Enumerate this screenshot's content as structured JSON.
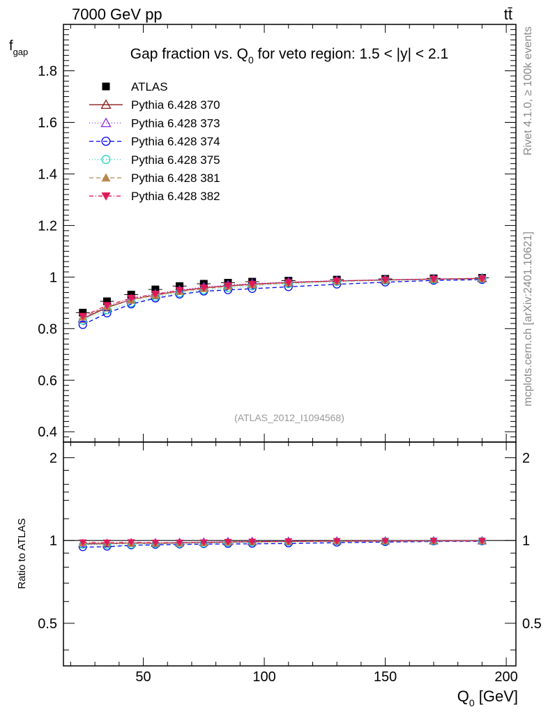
{
  "header": {
    "energy_label": "7000 GeV pp",
    "process_label": "tt̄"
  },
  "side_labels": {
    "rivet": "Rivet 4.1.0, ≥ 100k events",
    "mcplots": "mcplots.cern.ch [arXiv:2401.10621]"
  },
  "watermark": "(ATLAS_2012_I1094568)",
  "colors": {
    "atlas": "#000000",
    "p370": "#8b1a1a",
    "p373": "#8a2be2",
    "p374": "#0000ee",
    "p375": "#20d0c0",
    "p381": "#b8864e",
    "p382": "#e01a5a"
  },
  "chart_data": {
    "type": "scatter",
    "title_main": "Gap fraction vs. Q",
    "title_sub": "0",
    "title_rest": " for veto region: 1.5 < |y| < 2.1",
    "ylabel_main": "f",
    "ylabel_sub": "gap",
    "xlabel_main": "Q",
    "xlabel_sub": "0",
    "xlabel_rest": " [GeV]",
    "ratio_ylabel": "Ratio to ATLAS",
    "xlim": [
      17,
      204
    ],
    "ylim": [
      0.36,
      1.98
    ],
    "ratio_ylim": [
      0.35,
      2.28
    ],
    "xticks": [
      50,
      100,
      150,
      200
    ],
    "xtick_labels": [
      "50",
      "100",
      "150",
      "200"
    ],
    "yticks": [
      0.4,
      0.6,
      0.8,
      1.0,
      1.2,
      1.4,
      1.6,
      1.8
    ],
    "ytick_labels": [
      "0.4",
      "0.6",
      "0.8",
      "1",
      "1.2",
      "1.4",
      "1.6",
      "1.8"
    ],
    "ratio_yticks": [
      0.5,
      1,
      2
    ],
    "ratio_ytick_labels": [
      "0.5",
      "1",
      "2"
    ],
    "x": [
      25,
      35,
      45,
      55,
      65,
      75,
      85,
      95,
      110,
      130,
      150,
      170,
      190
    ],
    "series": [
      {
        "name": "ATLAS",
        "key": "atlas",
        "marker": "square",
        "dash": "",
        "line": false,
        "values": [
          0.862,
          0.906,
          0.932,
          0.952,
          0.965,
          0.974,
          0.978,
          0.982,
          0.986,
          0.99,
          0.993,
          0.995,
          0.997
        ]
      },
      {
        "name": "Pythia 6.428 370",
        "key": "p370",
        "marker": "triangle-open",
        "dash": "",
        "line": true,
        "values": [
          0.838,
          0.882,
          0.912,
          0.93,
          0.946,
          0.958,
          0.966,
          0.972,
          0.979,
          0.985,
          0.989,
          0.992,
          0.995
        ]
      },
      {
        "name": "Pythia 6.428 373",
        "key": "p373",
        "marker": "triangle-open",
        "dash": "1,3",
        "line": true,
        "values": [
          0.84,
          0.885,
          0.915,
          0.935,
          0.95,
          0.962,
          0.97,
          0.975,
          0.981,
          0.986,
          0.99,
          0.993,
          0.995
        ]
      },
      {
        "name": "Pythia 6.428 374",
        "key": "p374",
        "marker": "circle-open",
        "dash": "6,4",
        "line": true,
        "values": [
          0.815,
          0.86,
          0.895,
          0.918,
          0.933,
          0.945,
          0.95,
          0.955,
          0.962,
          0.972,
          0.98,
          0.987,
          0.99
        ]
      },
      {
        "name": "Pythia 6.428 375",
        "key": "p375",
        "marker": "circle-open",
        "dash": "1,3",
        "line": true,
        "values": [
          0.832,
          0.872,
          0.9,
          0.924,
          0.938,
          0.95,
          0.958,
          0.965,
          0.974,
          0.982,
          0.987,
          0.99,
          0.993
        ]
      },
      {
        "name": "Pythia 6.428 381",
        "key": "p381",
        "marker": "triangle-filled",
        "dash": "6,4",
        "line": true,
        "values": [
          0.845,
          0.885,
          0.912,
          0.93,
          0.944,
          0.955,
          0.964,
          0.97,
          0.977,
          0.984,
          0.988,
          0.991,
          0.993
        ]
      },
      {
        "name": "Pythia 6.428 382",
        "key": "p382",
        "marker": "triangle-down-filled",
        "dash": "6,3,1,3",
        "line": true,
        "values": [
          0.848,
          0.89,
          0.918,
          0.934,
          0.948,
          0.958,
          0.966,
          0.972,
          0.979,
          0.985,
          0.989,
          0.992,
          0.994
        ]
      }
    ]
  }
}
